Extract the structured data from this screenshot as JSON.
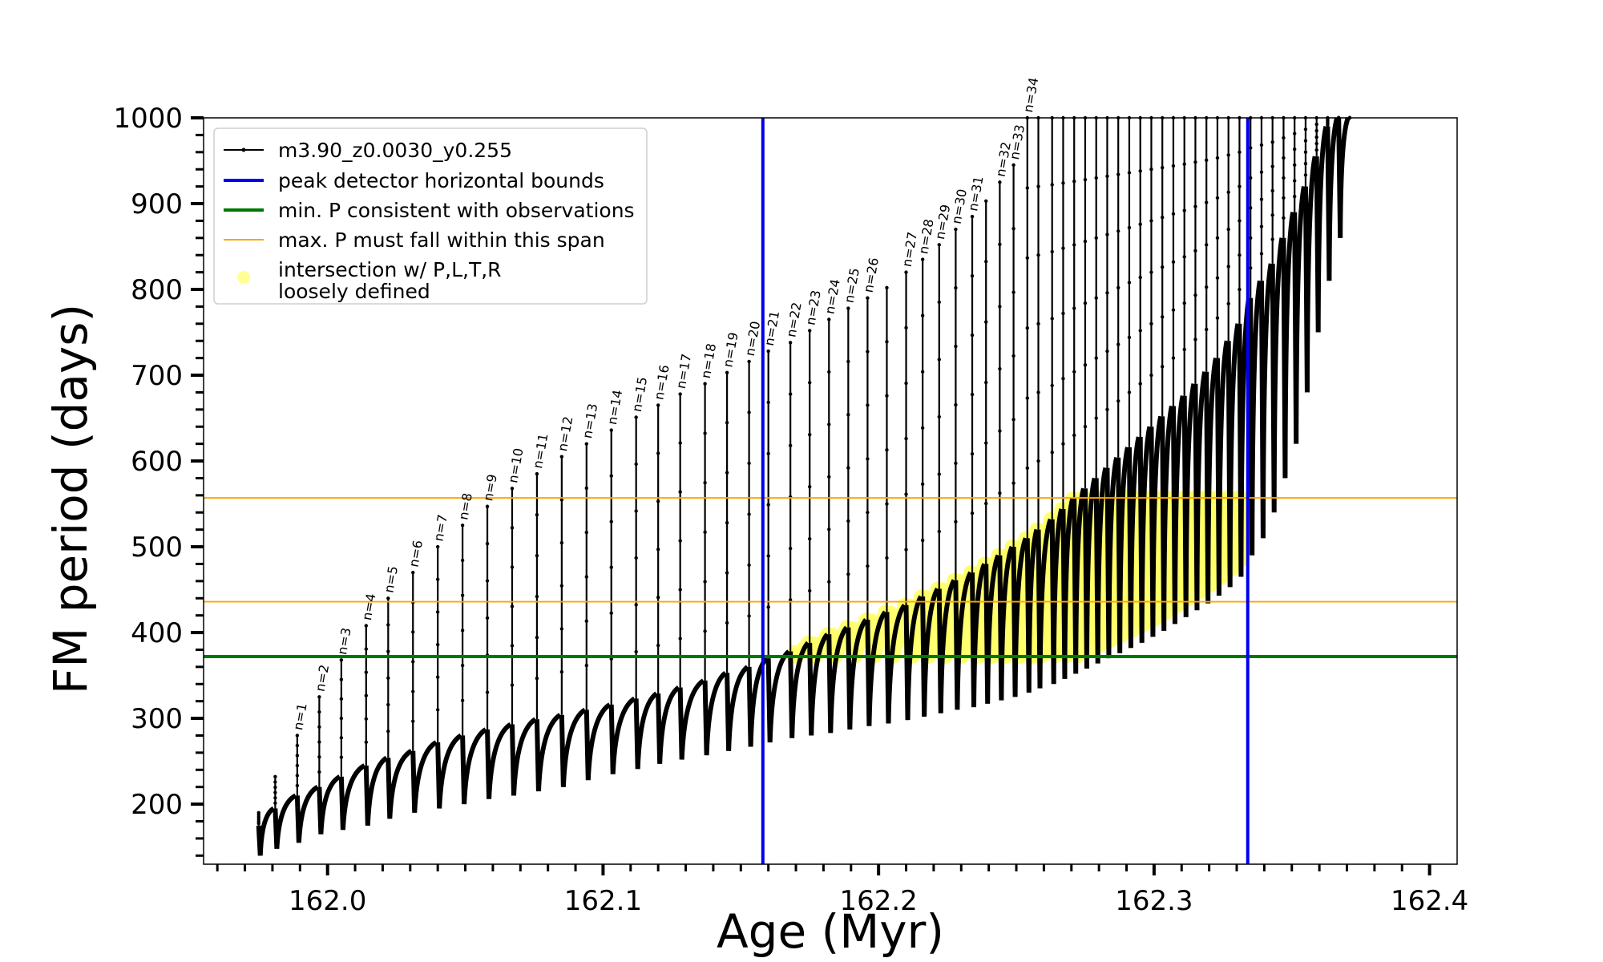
{
  "chart_data": {
    "type": "line",
    "title": "",
    "xlabel": "Age (Myr)",
    "ylabel": "FM period (days)",
    "xlim": [
      161.955,
      162.41
    ],
    "ylim": [
      130,
      1000
    ],
    "xticks": [
      162.0,
      162.1,
      162.2,
      162.3,
      162.4
    ],
    "xtick_labels": [
      "162.0",
      "162.1",
      "162.2",
      "162.3",
      "162.4"
    ],
    "yticks": [
      200,
      300,
      400,
      500,
      600,
      700,
      800,
      900,
      1000
    ],
    "ytick_labels": [
      "200",
      "300",
      "400",
      "500",
      "600",
      "700",
      "800",
      "900",
      "1000"
    ],
    "grid": false,
    "legend_position": "upper-left",
    "legend": [
      {
        "label": "m3.90_z0.0030_y0.255",
        "color": "#000000",
        "style": "line-dot"
      },
      {
        "label": "peak detector horizontal bounds",
        "color": "#0000ee",
        "style": "thick-line"
      },
      {
        "label": "min. P consistent with observations",
        "color": "#007700",
        "style": "thick-line"
      },
      {
        "label": "max. P must fall within this span",
        "color": "#ffa500",
        "style": "thin-line"
      },
      {
        "label_lines": [
          "intersection w/ P,L,T,R",
          "loosely defined"
        ],
        "color": "#ffff66",
        "style": "marker"
      }
    ],
    "series": [
      {
        "name": "m3.90_z0.0030_y0.255",
        "color": "#000000",
        "pulses": [
          {
            "n": null,
            "x": 161.975,
            "base": 175,
            "peak": 190,
            "low": 140
          },
          {
            "n": null,
            "x": 161.981,
            "base": 195,
            "peak": 232,
            "low": 148
          },
          {
            "n": 1,
            "x": 161.989,
            "base": 210,
            "peak": 280,
            "low": 155
          },
          {
            "n": 2,
            "x": 161.997,
            "base": 220,
            "peak": 325,
            "low": 165
          },
          {
            "n": 3,
            "x": 162.005,
            "base": 232,
            "peak": 368,
            "low": 170
          },
          {
            "n": 4,
            "x": 162.014,
            "base": 245,
            "peak": 408,
            "low": 175
          },
          {
            "n": 5,
            "x": 162.022,
            "base": 254,
            "peak": 440,
            "low": 183
          },
          {
            "n": 6,
            "x": 162.031,
            "base": 262,
            "peak": 470,
            "low": 190
          },
          {
            "n": 7,
            "x": 162.04,
            "base": 272,
            "peak": 500,
            "low": 195
          },
          {
            "n": 8,
            "x": 162.049,
            "base": 280,
            "peak": 525,
            "low": 200
          },
          {
            "n": 9,
            "x": 162.058,
            "base": 287,
            "peak": 547,
            "low": 206
          },
          {
            "n": 10,
            "x": 162.067,
            "base": 293,
            "peak": 568,
            "low": 210
          },
          {
            "n": 11,
            "x": 162.076,
            "base": 299,
            "peak": 585,
            "low": 215
          },
          {
            "n": 12,
            "x": 162.085,
            "base": 304,
            "peak": 605,
            "low": 220
          },
          {
            "n": 13,
            "x": 162.094,
            "base": 310,
            "peak": 620,
            "low": 228
          },
          {
            "n": 14,
            "x": 162.103,
            "base": 316,
            "peak": 636,
            "low": 235
          },
          {
            "n": 15,
            "x": 162.112,
            "base": 323,
            "peak": 651,
            "low": 241
          },
          {
            "n": 16,
            "x": 162.12,
            "base": 329,
            "peak": 665,
            "low": 247
          },
          {
            "n": 17,
            "x": 162.128,
            "base": 336,
            "peak": 678,
            "low": 252
          },
          {
            "n": 18,
            "x": 162.137,
            "base": 344,
            "peak": 690,
            "low": 257
          },
          {
            "n": 19,
            "x": 162.145,
            "base": 353,
            "peak": 703,
            "low": 262
          },
          {
            "n": 20,
            "x": 162.153,
            "base": 360,
            "peak": 716,
            "low": 267
          },
          {
            "n": 21,
            "x": 162.16,
            "base": 370,
            "peak": 728,
            "low": 272
          },
          {
            "n": 22,
            "x": 162.168,
            "base": 378,
            "peak": 738,
            "low": 277
          },
          {
            "n": 23,
            "x": 162.175,
            "base": 388,
            "peak": 752,
            "low": 280
          },
          {
            "n": 24,
            "x": 162.182,
            "base": 398,
            "peak": 765,
            "low": 283
          },
          {
            "n": 25,
            "x": 162.189,
            "base": 406,
            "peak": 778,
            "low": 287
          },
          {
            "n": 26,
            "x": 162.196,
            "base": 415,
            "peak": 790,
            "low": 291
          },
          {
            "n": null,
            "x": 162.203,
            "base": 424,
            "peak": 802,
            "low": 294
          },
          {
            "n": 27,
            "x": 162.21,
            "base": 432,
            "peak": 820,
            "low": 298
          },
          {
            "n": 28,
            "x": 162.216,
            "base": 442,
            "peak": 835,
            "low": 302
          },
          {
            "n": 29,
            "x": 162.222,
            "base": 451,
            "peak": 852,
            "low": 306
          },
          {
            "n": 30,
            "x": 162.228,
            "base": 461,
            "peak": 870,
            "low": 310
          },
          {
            "n": 31,
            "x": 162.234,
            "base": 470,
            "peak": 885,
            "low": 313
          },
          {
            "n": null,
            "x": 162.239,
            "base": 480,
            "peak": 903,
            "low": 317
          },
          {
            "n": 32,
            "x": 162.244,
            "base": 490,
            "peak": 925,
            "low": 321
          },
          {
            "n": 33,
            "x": 162.249,
            "base": 500,
            "peak": 945,
            "low": 325
          },
          {
            "n": 34,
            "x": 162.254,
            "base": 510,
            "peak": 1000,
            "low": 330
          },
          {
            "n": null,
            "x": 162.258,
            "base": 520,
            "peak": 1000,
            "low": 335
          },
          {
            "n": null,
            "x": 162.263,
            "base": 532,
            "peak": 1000,
            "low": 340
          },
          {
            "n": null,
            "x": 162.267,
            "base": 544,
            "peak": 1000,
            "low": 346
          },
          {
            "n": null,
            "x": 162.271,
            "base": 556,
            "peak": 1000,
            "low": 352
          },
          {
            "n": null,
            "x": 162.275,
            "base": 568,
            "peak": 1000,
            "low": 358
          },
          {
            "n": null,
            "x": 162.279,
            "base": 580,
            "peak": 1000,
            "low": 364
          },
          {
            "n": null,
            "x": 162.283,
            "base": 592,
            "peak": 1000,
            "low": 370
          },
          {
            "n": null,
            "x": 162.287,
            "base": 604,
            "peak": 1000,
            "low": 376
          },
          {
            "n": null,
            "x": 162.291,
            "base": 616,
            "peak": 1000,
            "low": 382
          },
          {
            "n": null,
            "x": 162.295,
            "base": 628,
            "peak": 1000,
            "low": 388
          },
          {
            "n": null,
            "x": 162.299,
            "base": 640,
            "peak": 1000,
            "low": 395
          },
          {
            "n": null,
            "x": 162.303,
            "base": 652,
            "peak": 1000,
            "low": 402
          },
          {
            "n": null,
            "x": 162.307,
            "base": 664,
            "peak": 1000,
            "low": 410
          },
          {
            "n": null,
            "x": 162.311,
            "base": 676,
            "peak": 1000,
            "low": 418
          },
          {
            "n": null,
            "x": 162.315,
            "base": 690,
            "peak": 1000,
            "low": 426
          },
          {
            "n": null,
            "x": 162.319,
            "base": 704,
            "peak": 1000,
            "low": 434
          },
          {
            "n": null,
            "x": 162.323,
            "base": 720,
            "peak": 1000,
            "low": 443
          },
          {
            "n": null,
            "x": 162.327,
            "base": 740,
            "peak": 1000,
            "low": 453
          },
          {
            "n": null,
            "x": 162.331,
            "base": 760,
            "peak": 1000,
            "low": 465
          },
          {
            "n": null,
            "x": 162.335,
            "base": 790,
            "peak": 1000,
            "low": 490
          },
          {
            "n": null,
            "x": 162.339,
            "base": 810,
            "peak": 1000,
            "low": 510
          },
          {
            "n": null,
            "x": 162.343,
            "base": 830,
            "peak": 1000,
            "low": 540
          },
          {
            "n": null,
            "x": 162.347,
            "base": 860,
            "peak": 1000,
            "low": 580
          },
          {
            "n": null,
            "x": 162.351,
            "base": 890,
            "peak": 1000,
            "low": 620
          },
          {
            "n": null,
            "x": 162.355,
            "base": 920,
            "peak": 1000,
            "low": 680
          },
          {
            "n": null,
            "x": 162.359,
            "base": 955,
            "peak": 1000,
            "low": 750
          },
          {
            "n": null,
            "x": 162.363,
            "base": 990,
            "peak": 1000,
            "low": 810
          },
          {
            "n": null,
            "x": 162.367,
            "base": 1000,
            "peak": 1000,
            "low": 860
          },
          {
            "n": null,
            "x": 162.371,
            "base": 1000,
            "peak": 1000,
            "low": 960
          }
        ]
      },
      {
        "name": "peak detector horizontal bounds",
        "color": "#0000ee",
        "vlines_x": [
          162.158,
          162.334
        ]
      },
      {
        "name": "min. P consistent with observations",
        "color": "#007700",
        "hline_y": 372
      },
      {
        "name": "max. P must fall within this span",
        "color": "#ffa500",
        "hlines_y": [
          436,
          557
        ]
      },
      {
        "name": "intersection w/ P,L,T,R loosely defined",
        "color": "#ffff66",
        "region": {
          "x_start": 162.165,
          "x_end": 162.334,
          "y_min": 372,
          "y_max": 557
        }
      }
    ]
  }
}
